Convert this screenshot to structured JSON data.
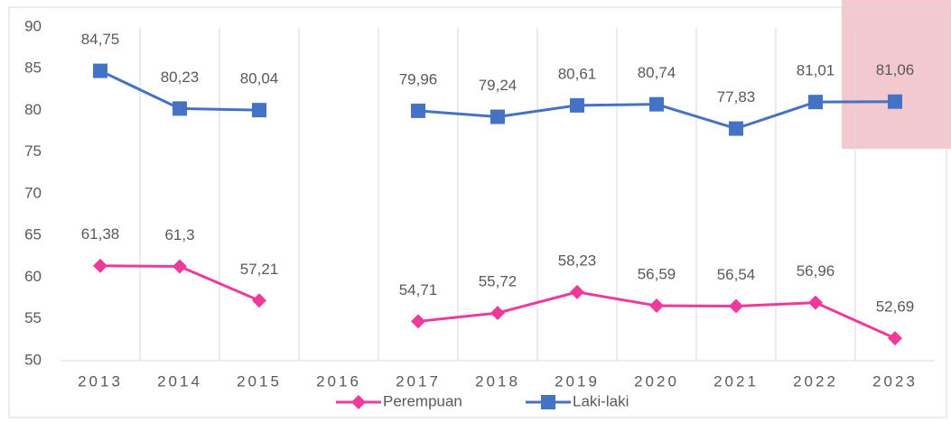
{
  "chart_data": {
    "type": "line",
    "categories": [
      "2013",
      "2014",
      "2015",
      "2016",
      "2017",
      "2018",
      "2019",
      "2020",
      "2021",
      "2022",
      "2023"
    ],
    "series": [
      {
        "name": "Perempuan",
        "color": "#ee3a9a",
        "marker": "diamond",
        "values": [
          61.38,
          61.3,
          57.21,
          null,
          54.71,
          55.72,
          58.23,
          56.59,
          56.54,
          56.96,
          52.69
        ],
        "value_labels": [
          "61,38",
          "61,3",
          "57,21",
          null,
          "54,71",
          "55,72",
          "58,23",
          "56,59",
          "56,54",
          "56,96",
          "52,69"
        ]
      },
      {
        "name": "Laki-laki",
        "color": "#4472c4",
        "marker": "square",
        "values": [
          84.75,
          80.23,
          80.04,
          null,
          79.96,
          79.24,
          80.61,
          80.74,
          77.83,
          81.01,
          81.06
        ],
        "value_labels": [
          "84,75",
          "80,23",
          "80,04",
          null,
          "79,96",
          "79,24",
          "80,61",
          "80,74",
          "77,83",
          "81,01",
          "81,06"
        ]
      }
    ],
    "ylim": [
      50,
      90
    ],
    "yticks": [
      50,
      55,
      60,
      65,
      70,
      75,
      80,
      85,
      90
    ],
    "grid": "vertical",
    "legend": "bottom"
  }
}
